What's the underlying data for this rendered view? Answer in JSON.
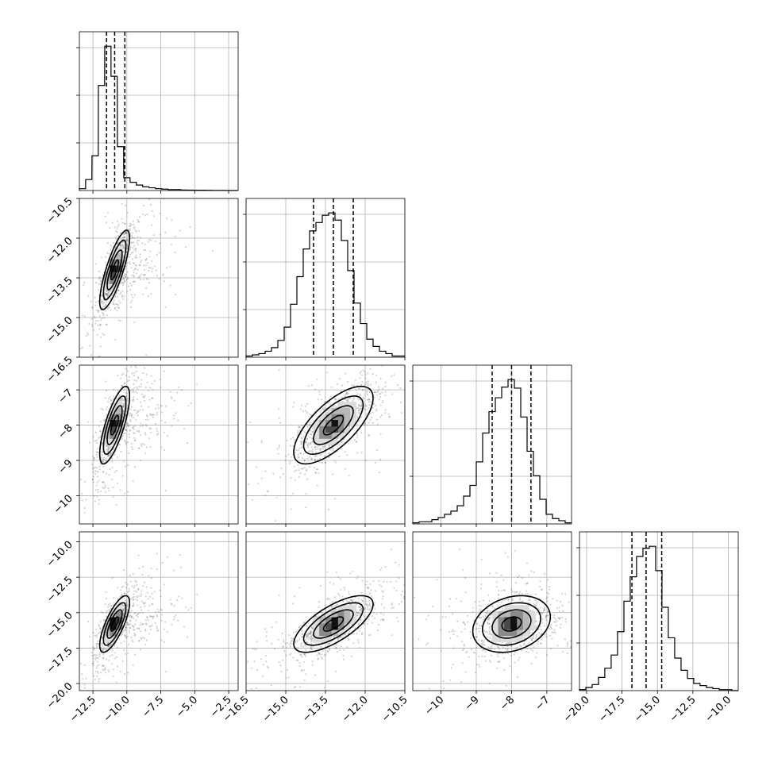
{
  "chart_data": {
    "type": "corner",
    "parameters": [
      {
        "index": 0,
        "range": [
          -13.5,
          -1.8
        ],
        "ticks": [
          -12.5,
          -10.0,
          -7.5,
          -5.0,
          -2.5
        ],
        "tick_labels": [
          "−12.5",
          "−10.0",
          "−7.5",
          "−5.0",
          "−2.5"
        ],
        "mean": -10.9,
        "sigma": 0.55,
        "quantiles": [
          -11.5,
          -10.9,
          -10.15
        ]
      },
      {
        "index": 1,
        "range": [
          -16.5,
          -10.5
        ],
        "ticks": [
          -16.5,
          -15.0,
          -13.5,
          -12.0,
          -10.5
        ],
        "tick_labels": [
          "−16.5",
          "−15.0",
          "−13.5",
          "−12.0",
          "−10.5"
        ],
        "mean": -13.2,
        "sigma": 0.75,
        "quantiles": [
          -13.95,
          -13.2,
          -12.45
        ]
      },
      {
        "index": 2,
        "range": [
          -10.8,
          -6.3
        ],
        "ticks": [
          -10,
          -9,
          -8,
          -7
        ],
        "tick_labels": [
          "−10",
          "−9",
          "−8",
          "−7"
        ],
        "mean": -8.0,
        "sigma": 0.55,
        "quantiles": [
          -8.55,
          -8.0,
          -7.45
        ]
      },
      {
        "index": 3,
        "range": [
          -20.5,
          -9.3
        ],
        "ticks": [
          -20.0,
          -17.5,
          -15.0,
          -12.5,
          -10.0
        ],
        "tick_labels": [
          "−20.0",
          "−17.5",
          "−15.0",
          "−12.5",
          "−10.0"
        ],
        "mean": -15.8,
        "sigma": 1.0,
        "quantiles": [
          -16.8,
          -15.8,
          -14.7
        ]
      }
    ],
    "histograms": [
      {
        "param": 0,
        "bin_centers": [
          -13.27,
          -12.81,
          -12.34,
          -11.87,
          -11.4,
          -10.94,
          -10.47,
          -10.0,
          -9.53,
          -9.07,
          -8.6,
          -8.13,
          -7.66,
          -7.2,
          -6.73,
          -6.26,
          -5.79,
          -5.33,
          -4.86,
          -4.39,
          -3.92,
          -3.46,
          -2.99,
          -2.52,
          -2.05
        ],
        "counts": [
          2,
          12,
          38,
          115,
          158,
          125,
          48,
          14,
          9,
          6,
          4,
          3,
          2,
          1.5,
          1,
          1,
          0.6,
          0.5,
          0.3,
          0.3,
          0.2,
          0.1,
          0.1,
          0,
          0
        ]
      },
      {
        "param": 1,
        "bin_centers": [
          -16.38,
          -16.14,
          -15.9,
          -15.66,
          -15.42,
          -15.18,
          -14.94,
          -14.7,
          -14.46,
          -14.22,
          -13.98,
          -13.74,
          -13.5,
          -13.26,
          -13.02,
          -12.78,
          -12.54,
          -12.3,
          -12.06,
          -11.82,
          -11.58,
          -11.34,
          -11.1,
          -10.86,
          -10.62
        ],
        "counts": [
          1,
          2,
          3,
          5,
          8,
          14,
          25,
          44,
          67,
          90,
          105,
          112,
          118,
          120,
          114,
          97,
          72,
          45,
          28,
          15,
          9,
          5,
          3,
          1,
          1
        ]
      },
      {
        "param": 2,
        "bin_centers": [
          -10.71,
          -10.53,
          -10.35,
          -10.17,
          -9.99,
          -9.81,
          -9.63,
          -9.45,
          -9.27,
          -9.09,
          -8.91,
          -8.73,
          -8.55,
          -8.37,
          -8.19,
          -8.01,
          -7.83,
          -7.65,
          -7.47,
          -7.29,
          -7.11,
          -6.93,
          -6.75,
          -6.57,
          -6.39
        ],
        "counts": [
          1,
          2,
          2,
          4,
          6,
          9,
          12,
          17,
          26,
          36,
          58,
          85,
          105,
          118,
          128,
          135,
          127,
          100,
          68,
          45,
          23,
          9,
          5,
          3,
          1
        ]
      },
      {
        "param": 3,
        "bin_centers": [
          -20.28,
          -19.83,
          -19.38,
          -18.94,
          -18.49,
          -18.04,
          -17.59,
          -17.14,
          -16.7,
          -16.25,
          -15.8,
          -15.35,
          -14.9,
          -14.46,
          -14.01,
          -13.56,
          -13.11,
          -12.66,
          -12.22,
          -11.77,
          -11.32,
          -10.87,
          -10.42,
          -9.98,
          -9.53
        ],
        "counts": [
          1,
          3,
          6,
          13,
          22,
          35,
          58,
          88,
          112,
          132,
          140,
          142,
          118,
          82,
          52,
          32,
          20,
          12,
          7,
          5,
          3,
          2,
          1,
          1,
          0
        ]
      }
    ],
    "pair_correlations": [
      {
        "x_param": 0,
        "y_param": 1,
        "rho": 0.8
      },
      {
        "x_param": 0,
        "y_param": 2,
        "rho": 0.75
      },
      {
        "x_param": 1,
        "y_param": 2,
        "rho": 0.7
      },
      {
        "x_param": 0,
        "y_param": 3,
        "rho": 0.75
      },
      {
        "x_param": 1,
        "y_param": 3,
        "rho": 0.7
      },
      {
        "x_param": 2,
        "y_param": 3,
        "rho": 0.25
      }
    ],
    "grid": true
  }
}
